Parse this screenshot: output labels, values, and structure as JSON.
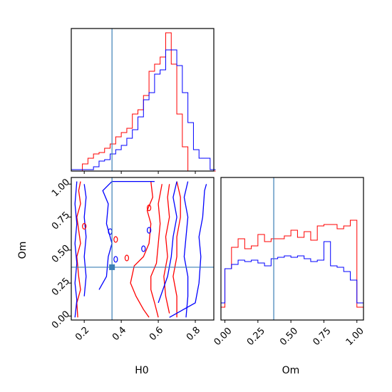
{
  "chart_data": {
    "type": "corner",
    "parameters": [
      "H0",
      "Om"
    ],
    "truth": {
      "H0": 0.35,
      "Om": 0.37
    },
    "truth_color": "#3b7fb6",
    "series": [
      {
        "color": "#ff0000",
        "edge": "#ff0000"
      },
      {
        "color": "#0000ff",
        "edge": "#0000ff"
      }
    ],
    "axes": {
      "H0": {
        "label": "H0",
        "range": [
          0.13,
          0.9
        ],
        "ticks": [
          0.2,
          0.4,
          0.6,
          0.8
        ],
        "tick_labels": [
          "0.2",
          "0.4",
          "0.6",
          "0.8"
        ]
      },
      "Om": {
        "label": "Om",
        "range": [
          -0.03,
          1.05
        ],
        "ticks": [
          0.0,
          0.25,
          0.5,
          0.75,
          1.0
        ],
        "tick_labels": [
          "0.00",
          "0.25",
          "0.50",
          "0.75",
          "1.00"
        ]
      }
    },
    "hist_H0": {
      "bin_edges": [
        0.13,
        0.16,
        0.19,
        0.22,
        0.25,
        0.28,
        0.31,
        0.34,
        0.37,
        0.4,
        0.43,
        0.46,
        0.49,
        0.52,
        0.55,
        0.58,
        0.61,
        0.64,
        0.67,
        0.7,
        0.73,
        0.76,
        0.79,
        0.82,
        0.85,
        0.88,
        0.91
      ],
      "red": [
        0,
        0,
        0.05,
        0.09,
        0.12,
        0.13,
        0.16,
        0.19,
        0.24,
        0.27,
        0.3,
        0.4,
        0.43,
        0.53,
        0.7,
        0.75,
        0.8,
        0.97,
        0.75,
        0.4,
        0.17,
        0,
        0,
        0,
        0,
        0
      ],
      "blue": [
        0.01,
        0.01,
        0.01,
        0.01,
        0.03,
        0.07,
        0.08,
        0.12,
        0.15,
        0.18,
        0.23,
        0.29,
        0.38,
        0.5,
        0.55,
        0.68,
        0.71,
        0.85,
        0.85,
        0.74,
        0.55,
        0.34,
        0.15,
        0.09,
        0.09,
        0.01
      ]
    },
    "hist_Om": {
      "bin_edges": [
        -0.03,
        0.0,
        0.05,
        0.1,
        0.15,
        0.2,
        0.25,
        0.3,
        0.35,
        0.4,
        0.45,
        0.5,
        0.55,
        0.6,
        0.65,
        0.7,
        0.75,
        0.8,
        0.85,
        0.9,
        0.95,
        1.0,
        1.05
      ],
      "red": [
        0.09,
        0.36,
        0.51,
        0.57,
        0.5,
        0.52,
        0.6,
        0.55,
        0.57,
        0.57,
        0.59,
        0.63,
        0.58,
        0.62,
        0.56,
        0.66,
        0.67,
        0.67,
        0.64,
        0.66,
        0.7,
        0.09
      ],
      "blue": [
        0.12,
        0.36,
        0.39,
        0.42,
        0.41,
        0.42,
        0.4,
        0.38,
        0.43,
        0.44,
        0.45,
        0.44,
        0.45,
        0.43,
        0.41,
        0.42,
        0.55,
        0.38,
        0.37,
        0.34,
        0.28,
        0.12
      ]
    },
    "contours_2d": {
      "red": [
        [
          [
            0.105,
            -0.01
          ],
          [
            0.11,
            0.05
          ],
          [
            0.12,
            0.15
          ],
          [
            0.125,
            0.25
          ],
          [
            0.12,
            0.35
          ],
          [
            0.11,
            0.45
          ],
          [
            0.12,
            0.55
          ],
          [
            0.12,
            0.65
          ],
          [
            0.11,
            0.75
          ],
          [
            0.12,
            0.85
          ],
          [
            0.12,
            1.0
          ]
        ],
        [
          [
            0.165,
            -0.01
          ],
          [
            0.16,
            0.1
          ],
          [
            0.18,
            0.2
          ],
          [
            0.17,
            0.3
          ],
          [
            0.16,
            0.45
          ],
          [
            0.18,
            0.55
          ],
          [
            0.17,
            0.65
          ],
          [
            0.16,
            0.75
          ],
          [
            0.18,
            0.85
          ],
          [
            0.17,
            0.95
          ],
          [
            0.18,
            1.02
          ]
        ],
        [
          [
            0.55,
            -0.01
          ],
          [
            0.52,
            0.05
          ],
          [
            0.48,
            0.15
          ],
          [
            0.45,
            0.25
          ],
          [
            0.47,
            0.38
          ],
          [
            0.52,
            0.45
          ],
          [
            0.55,
            0.55
          ],
          [
            0.56,
            0.7
          ],
          [
            0.54,
            0.8
          ],
          [
            0.57,
            0.9
          ],
          [
            0.56,
            1.02
          ]
        ],
        [
          [
            0.6,
            -0.01
          ],
          [
            0.58,
            0.1
          ],
          [
            0.56,
            0.2
          ],
          [
            0.56,
            0.3
          ],
          [
            0.59,
            0.4
          ],
          [
            0.6,
            0.55
          ],
          [
            0.61,
            0.7
          ],
          [
            0.6,
            0.85
          ],
          [
            0.62,
            1.0
          ]
        ],
        [
          [
            0.66,
            0.02
          ],
          [
            0.64,
            0.15
          ],
          [
            0.63,
            0.3
          ],
          [
            0.65,
            0.45
          ],
          [
            0.64,
            0.6
          ],
          [
            0.66,
            0.75
          ],
          [
            0.65,
            0.9
          ],
          [
            0.66,
            1.0
          ]
        ],
        [
          [
            0.7,
            -0.01
          ],
          [
            0.7,
            0.15
          ],
          [
            0.68,
            0.3
          ],
          [
            0.7,
            0.45
          ],
          [
            0.7,
            0.6
          ],
          [
            0.72,
            0.75
          ],
          [
            0.72,
            0.9
          ],
          [
            0.7,
            1.02
          ]
        ]
      ],
      "blue": [
        [
          [
            0.15,
            -0.01
          ],
          [
            0.16,
            0.12
          ],
          [
            0.15,
            0.25
          ],
          [
            0.16,
            0.4
          ],
          [
            0.15,
            0.55
          ],
          [
            0.16,
            0.7
          ],
          [
            0.15,
            0.85
          ],
          [
            0.16,
            1.02
          ]
        ],
        [
          [
            0.2,
            0.15
          ],
          [
            0.21,
            0.3
          ],
          [
            0.2,
            0.45
          ],
          [
            0.21,
            0.6
          ],
          [
            0.2,
            0.75
          ],
          [
            0.21,
            0.9
          ],
          [
            0.2,
            1.0
          ]
        ],
        [
          [
            0.28,
            0.2
          ],
          [
            0.32,
            0.3
          ],
          [
            0.33,
            0.45
          ],
          [
            0.35,
            0.55
          ],
          [
            0.32,
            0.7
          ],
          [
            0.33,
            0.85
          ],
          [
            0.3,
            0.95
          ],
          [
            0.35,
            1.02
          ],
          [
            0.47,
            1.02
          ],
          [
            0.58,
            1.02
          ]
        ],
        [
          [
            0.6,
            0.1
          ],
          [
            0.62,
            0.18
          ],
          [
            0.65,
            0.3
          ],
          [
            0.67,
            0.45
          ],
          [
            0.68,
            0.6
          ],
          [
            0.7,
            0.75
          ],
          [
            0.68,
            0.9
          ],
          [
            0.7,
            1.02
          ]
        ],
        [
          [
            0.75,
            -0.01
          ],
          [
            0.76,
            0.15
          ],
          [
            0.76,
            0.3
          ],
          [
            0.74,
            0.45
          ],
          [
            0.75,
            0.6
          ],
          [
            0.76,
            0.75
          ],
          [
            0.74,
            0.9
          ],
          [
            0.76,
            1.02
          ]
        ],
        [
          [
            0.66,
            -0.01
          ],
          [
            0.8,
            0.1
          ],
          [
            0.82,
            0.25
          ],
          [
            0.83,
            0.45
          ],
          [
            0.82,
            0.6
          ],
          [
            0.84,
            0.75
          ],
          [
            0.85,
            0.95
          ],
          [
            0.86,
            1.0
          ]
        ]
      ]
    }
  }
}
